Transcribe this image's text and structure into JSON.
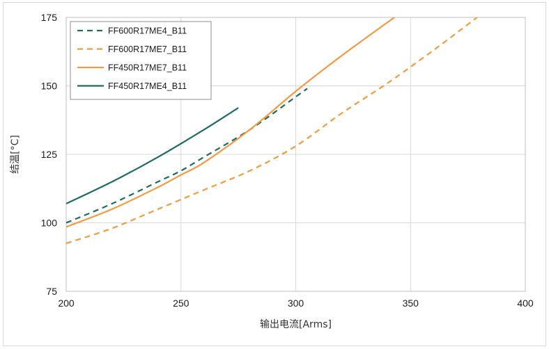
{
  "chart_data": {
    "type": "line",
    "xlabel": "输出电流[Arms]",
    "ylabel": "结温[°C]",
    "xlim": [
      200,
      400
    ],
    "ylim": [
      75,
      175
    ],
    "x_ticks": [
      200,
      250,
      300,
      350,
      400
    ],
    "y_ticks": [
      75,
      100,
      125,
      150,
      175
    ],
    "grid": true,
    "legend_position": "top-left",
    "series": [
      {
        "name": "FF600R17ME4_B11",
        "color": "#1f6b62",
        "dash": "dashed",
        "points": [
          [
            200,
            100
          ],
          [
            220,
            107
          ],
          [
            240,
            115
          ],
          [
            250,
            119
          ],
          [
            260,
            124
          ],
          [
            280,
            134
          ],
          [
            300,
            146
          ],
          [
            305,
            149
          ]
        ]
      },
      {
        "name": "FF600R17ME7_B11",
        "color": "#f39a3f",
        "dash": "dashed",
        "points": [
          [
            200,
            92.5
          ],
          [
            220,
            98
          ],
          [
            240,
            105
          ],
          [
            260,
            112
          ],
          [
            280,
            119
          ],
          [
            300,
            128
          ],
          [
            320,
            140
          ],
          [
            340,
            151
          ],
          [
            360,
            163
          ],
          [
            379,
            175
          ]
        ]
      },
      {
        "name": "FF450R17ME7_B11",
        "color": "#f39a3f",
        "dash": "solid",
        "points": [
          [
            200,
            98.5
          ],
          [
            220,
            105
          ],
          [
            240,
            113
          ],
          [
            250,
            117.5
          ],
          [
            260,
            122
          ],
          [
            280,
            134
          ],
          [
            300,
            148
          ],
          [
            320,
            161
          ],
          [
            343,
            175
          ]
        ]
      },
      {
        "name": "FF450R17ME4_B11",
        "color": "#1f6b62",
        "dash": "solid",
        "points": [
          [
            200,
            107
          ],
          [
            220,
            115
          ],
          [
            240,
            124
          ],
          [
            260,
            134
          ],
          [
            275,
            142
          ]
        ]
      }
    ]
  }
}
